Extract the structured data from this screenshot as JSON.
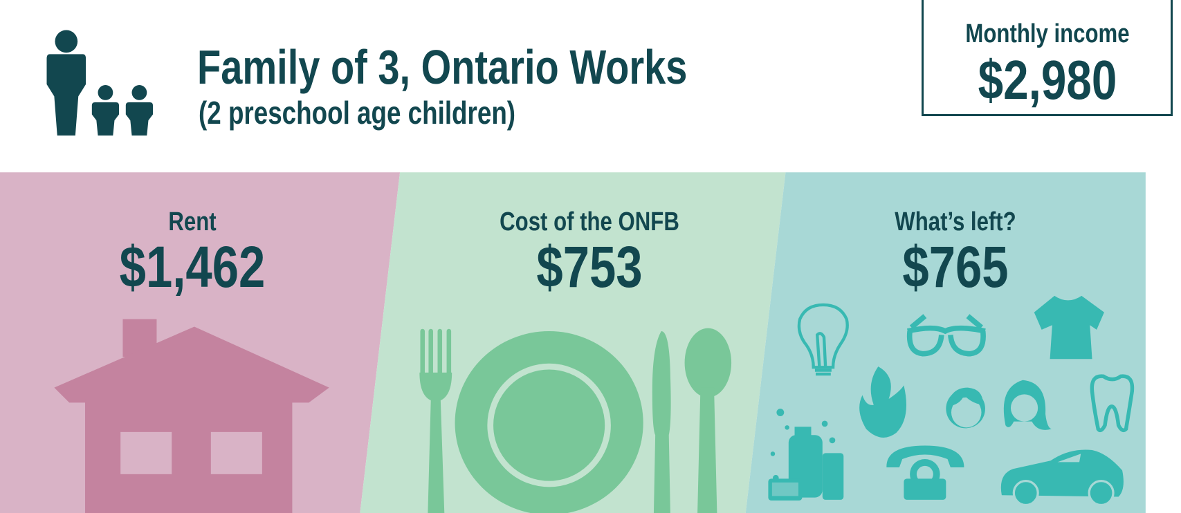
{
  "header": {
    "title": "Family of 3, Ontario Works",
    "subtitle": "(2 preschool age children)",
    "family_icon": "family-adult-two-children-icon"
  },
  "income": {
    "label": "Monthly income",
    "value": "$2,980"
  },
  "panels": [
    {
      "label": "Rent",
      "value": "$1,462",
      "icon": "house-icon",
      "bg": "#d9b3c6",
      "fg": "#c4839f"
    },
    {
      "label": "Cost of the ONFB",
      "value": "$753",
      "icon": "plate-fork-knife-spoon-icon",
      "bg": "#c2e3cf",
      "fg": "#79c799"
    },
    {
      "label": "What’s left?",
      "value": "$765",
      "icon": "expenses-icons",
      "bg": "#a8d8d6",
      "fg": "#38b9b2",
      "icons": [
        "lightbulb-icon",
        "glasses-icon",
        "tshirt-icon",
        "flame-icon",
        "children-faces-icon",
        "tooth-icon",
        "toiletries-icon",
        "telephone-icon",
        "car-icon"
      ]
    }
  ],
  "colors": {
    "text": "#12474f"
  }
}
